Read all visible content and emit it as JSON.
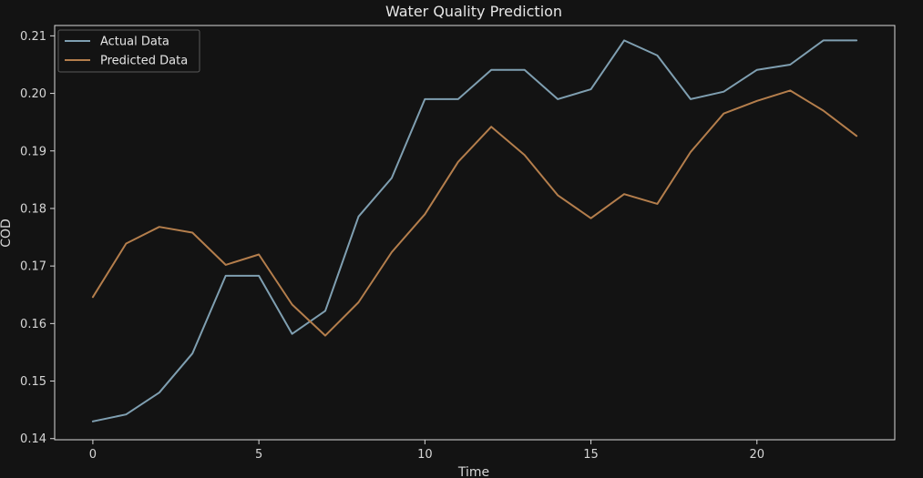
{
  "chart_data": {
    "type": "line",
    "title": "Water Quality Prediction",
    "xlabel": "Time",
    "ylabel": "COD",
    "xlim": [
      -1.15,
      24.15
    ],
    "ylim": [
      0.1398,
      0.2118
    ],
    "xticks": [
      0,
      5,
      10,
      15,
      20
    ],
    "yticks": [
      0.14,
      0.15,
      0.16,
      0.17,
      0.18,
      0.19,
      0.2,
      0.21
    ],
    "ytick_labels": [
      "0.14",
      "0.15",
      "0.16",
      "0.17",
      "0.18",
      "0.19",
      "0.20",
      "0.21"
    ],
    "grid": false,
    "legend_position": "top-left",
    "x": [
      0,
      1,
      2,
      3,
      4,
      5,
      6,
      7,
      8,
      9,
      10,
      11,
      12,
      13,
      14,
      15,
      16,
      17,
      18,
      19,
      20,
      21,
      22,
      23
    ],
    "series": [
      {
        "name": "Actual Data",
        "color": "#7f9fb1",
        "values": [
          0.143,
          0.1442,
          0.148,
          0.1548,
          0.1683,
          0.1683,
          0.1582,
          0.1622,
          0.1786,
          0.1853,
          0.199,
          0.199,
          0.2041,
          0.2041,
          0.199,
          0.2007,
          0.2092,
          0.2066,
          0.199,
          0.2003,
          0.2041,
          0.205,
          0.2092,
          0.2092
        ]
      },
      {
        "name": "Predicted Data",
        "color": "#b47e4c",
        "values": [
          0.1646,
          0.1739,
          0.1768,
          0.1758,
          0.1702,
          0.172,
          0.1633,
          0.1579,
          0.1637,
          0.1724,
          0.179,
          0.1881,
          0.1942,
          0.1893,
          0.1823,
          0.1783,
          0.1825,
          0.1808,
          0.1898,
          0.1965,
          0.1987,
          0.2005,
          0.197,
          0.1926
        ]
      }
    ]
  }
}
